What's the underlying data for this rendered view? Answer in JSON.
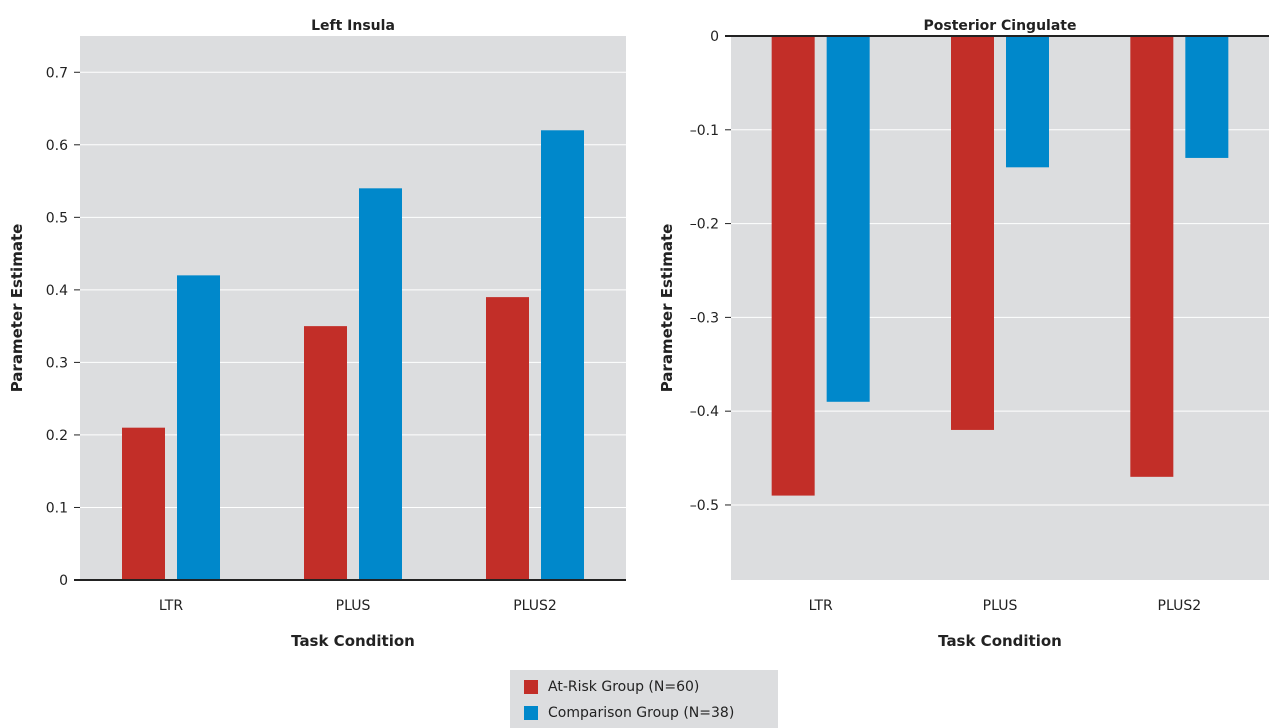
{
  "chart_data": [
    {
      "type": "bar",
      "title": "Left Insula",
      "xlabel": "Task Condition",
      "ylabel": "Parameter Estimate",
      "categories": [
        "LTR",
        "PLUS",
        "PLUS2"
      ],
      "ylim": [
        0,
        0.75
      ],
      "yticks": [
        0,
        0.1,
        0.2,
        0.3,
        0.4,
        0.5,
        0.6,
        0.7
      ],
      "ytick_labels": [
        "0",
        "0.1",
        "0.2",
        "0.3",
        "0.4",
        "0.5",
        "0.6",
        "0.7"
      ],
      "grid": true,
      "series": [
        {
          "name": "At-Risk Group (N=60)",
          "color": "#c22e28",
          "values": [
            0.21,
            0.35,
            0.39
          ]
        },
        {
          "name": "Comparison Group (N=38)",
          "color": "#0088cb",
          "values": [
            0.42,
            0.54,
            0.62
          ]
        }
      ]
    },
    {
      "type": "bar",
      "title": "Posterior Cingulate",
      "xlabel": "Task Condition",
      "ylabel": "Parameter Estimate",
      "categories": [
        "LTR",
        "PLUS",
        "PLUS2"
      ],
      "ylim": [
        -0.58,
        0
      ],
      "yticks": [
        0,
        -0.1,
        -0.2,
        -0.3,
        -0.4,
        -0.5
      ],
      "ytick_labels": [
        "0",
        "–0.1",
        "–0.2",
        "–0.3",
        "–0.4",
        "–0.5"
      ],
      "grid": true,
      "series": [
        {
          "name": "At-Risk Group (N=60)",
          "color": "#c22e28",
          "values": [
            -0.49,
            -0.42,
            -0.47
          ]
        },
        {
          "name": "Comparison Group (N=38)",
          "color": "#0088cb",
          "values": [
            -0.39,
            -0.14,
            -0.13
          ]
        }
      ]
    }
  ],
  "legend": {
    "position": "bottom-center",
    "items": [
      {
        "label": "At-Risk Group (N=60)",
        "color": "#c22e28"
      },
      {
        "label": "Comparison Group (N=38)",
        "color": "#0088cb"
      }
    ]
  }
}
